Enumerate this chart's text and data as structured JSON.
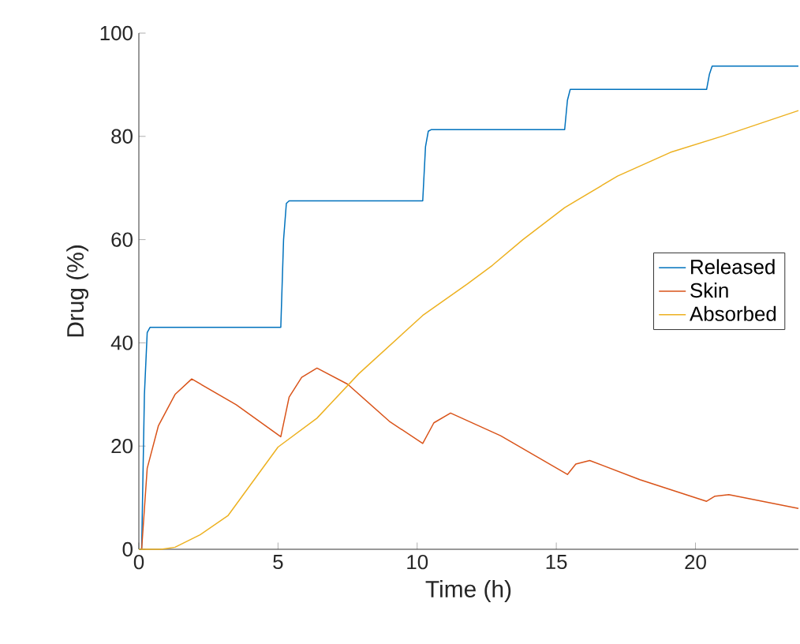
{
  "chart_data": {
    "type": "line",
    "xlabel": "Time (h)",
    "ylabel": "Drug (%)",
    "xlim": [
      0,
      23.7
    ],
    "ylim": [
      0,
      100
    ],
    "xticks": [
      0,
      5,
      10,
      15,
      20
    ],
    "yticks": [
      0,
      20,
      40,
      60,
      80,
      100
    ],
    "legend": "right",
    "grid": false,
    "series": [
      {
        "name": "Released",
        "color": "#0072bd",
        "x": [
          0,
          0.1,
          0.2,
          0.3,
          0.4,
          5.1,
          5.2,
          5.3,
          5.4,
          10.2,
          10.3,
          10.4,
          10.5,
          15.3,
          15.4,
          15.5,
          20.4,
          20.5,
          20.6,
          23.7
        ],
        "values": [
          0,
          0,
          30,
          42,
          43,
          43,
          60,
          67,
          67.5,
          67.5,
          78,
          81,
          81.3,
          81.3,
          87,
          89.1,
          89.1,
          92,
          93.6,
          93.6
        ]
      },
      {
        "name": "Skin",
        "color": "#d95319",
        "x": [
          0.1,
          0.3,
          0.7,
          1.3,
          1.9,
          3.5,
          5.1,
          5.4,
          5.85,
          6.4,
          7.5,
          9,
          10.2,
          10.6,
          11.2,
          13,
          15.4,
          15.7,
          16.2,
          18,
          20.4,
          20.7,
          21.2,
          23.7
        ],
        "values": [
          0,
          15.7,
          23.9,
          30,
          33,
          28,
          21.8,
          29.5,
          33.3,
          35.1,
          32,
          24.8,
          20.5,
          24.5,
          26.4,
          22,
          14.5,
          16.5,
          17.2,
          13.5,
          9.3,
          10.3,
          10.6,
          7.9
        ]
      },
      {
        "name": "Absorbed",
        "color": "#edb120",
        "x": [
          0,
          0.8,
          1.3,
          2.2,
          3.2,
          5,
          6.4,
          7.9,
          10.2,
          11.8,
          12.7,
          13.8,
          15.3,
          17.2,
          19.1,
          21,
          23.7
        ],
        "values": [
          0,
          0,
          0.4,
          2.8,
          6.5,
          19.8,
          25.4,
          34,
          45.3,
          51.4,
          55,
          60,
          66.2,
          72.3,
          76.9,
          80.1,
          85
        ]
      }
    ]
  }
}
